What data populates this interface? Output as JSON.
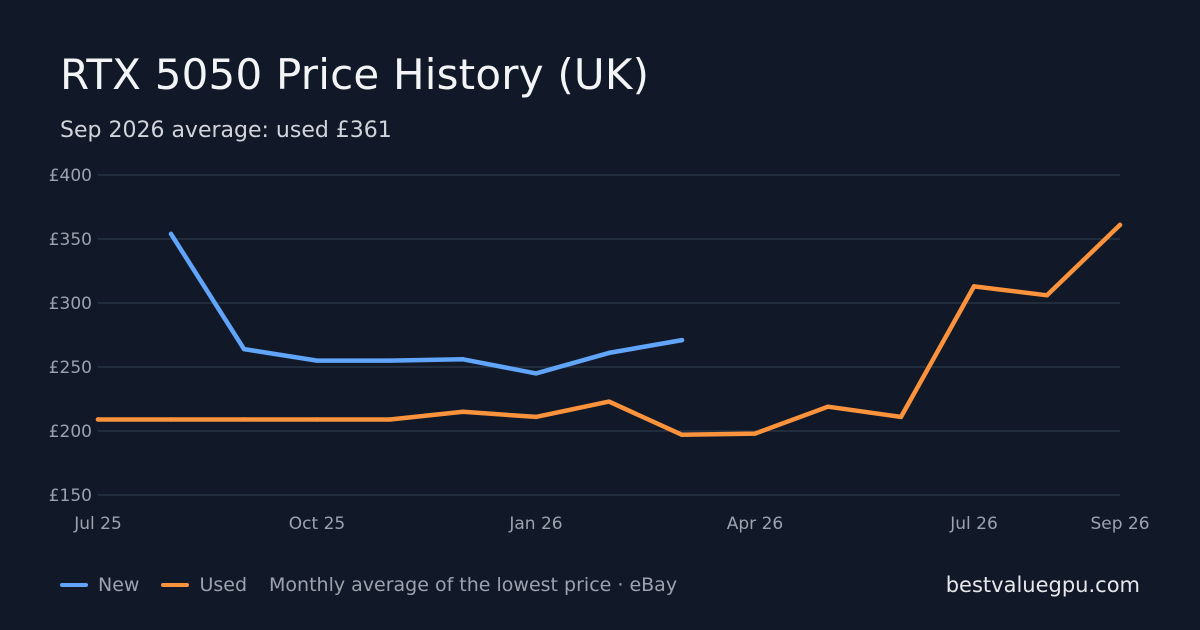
{
  "header": {
    "title": "RTX 5050 Price History (UK)",
    "subtitle": "Sep 2026 average: used £361"
  },
  "legend": {
    "new_label": "New",
    "used_label": "Used",
    "note": "Monthly average of the lowest price · eBay"
  },
  "footer": {
    "site": "bestvaluegpu.com"
  },
  "colors": {
    "background": "#111827",
    "new": "#60a5fa",
    "used": "#fb923c",
    "grid": "#273244",
    "tick": "#9ca3af"
  },
  "chart_data": {
    "type": "line",
    "title": "RTX 5050 Price History (UK)",
    "subtitle": "Sep 2026 average: used £361",
    "xlabel": "",
    "ylabel": "",
    "ylim": [
      150,
      400
    ],
    "yticks": [
      150,
      200,
      250,
      300,
      350,
      400
    ],
    "ytick_labels": [
      "£150",
      "£200",
      "£250",
      "£300",
      "£350",
      "£400"
    ],
    "x": [
      "2025-07",
      "2025-08",
      "2025-09",
      "2025-10",
      "2025-11",
      "2025-12",
      "2026-01",
      "2026-02",
      "2026-03",
      "2026-04",
      "2026-05",
      "2026-06",
      "2026-07",
      "2026-08",
      "2026-09"
    ],
    "xticks": [
      "2025-07",
      "2025-10",
      "2026-01",
      "2026-04",
      "2026-07",
      "2026-09"
    ],
    "xtick_labels": [
      "Jul 25",
      "Oct 25",
      "Jan 26",
      "Apr 26",
      "Jul 26",
      "Sep 26"
    ],
    "grid": true,
    "legend_position": "bottom-left",
    "series": [
      {
        "name": "New",
        "color": "#60a5fa",
        "values": [
          null,
          354,
          264,
          255,
          255,
          256,
          245,
          261,
          271,
          null,
          null,
          null,
          null,
          null,
          null
        ]
      },
      {
        "name": "Used",
        "color": "#fb923c",
        "values": [
          209,
          209,
          209,
          209,
          209,
          215,
          211,
          223,
          197,
          198,
          219,
          211,
          313,
          306,
          361
        ]
      }
    ]
  }
}
